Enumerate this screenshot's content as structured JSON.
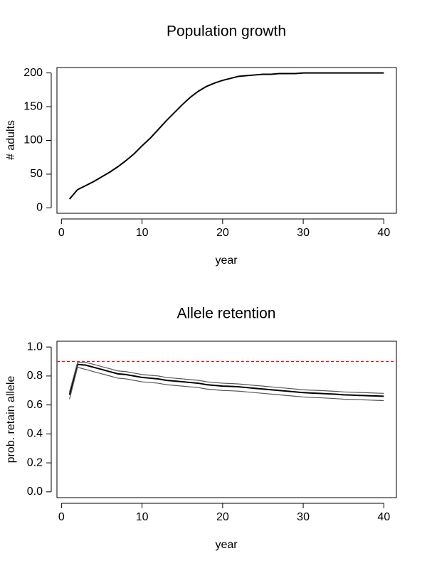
{
  "chart_data": [
    {
      "type": "line",
      "title": "Population growth",
      "xlabel": "year",
      "ylabel": "# adults",
      "x": [
        1,
        2,
        3,
        4,
        5,
        6,
        7,
        8,
        9,
        10,
        11,
        12,
        13,
        14,
        15,
        16,
        17,
        18,
        19,
        20,
        21,
        22,
        23,
        24,
        25,
        26,
        27,
        28,
        29,
        30,
        31,
        32,
        33,
        34,
        35,
        36,
        37,
        38,
        39,
        40
      ],
      "series": [
        {
          "color": "#000000",
          "values": [
            13,
            27,
            33,
            39,
            46,
            53,
            61,
            70,
            80,
            92,
            103,
            116,
            129,
            141,
            153,
            164,
            173,
            180,
            185,
            189,
            192,
            195,
            196,
            197,
            198,
            198,
            199,
            199,
            199,
            200,
            200,
            200,
            200,
            200,
            200,
            200,
            200,
            200,
            200,
            200
          ]
        }
      ],
      "xlim": [
        -0.56,
        41.56
      ],
      "xticks": [
        0,
        10,
        20,
        30,
        40
      ],
      "ylim": [
        -8,
        208
      ],
      "yticks": [
        0,
        50,
        100,
        150,
        200
      ]
    },
    {
      "type": "line",
      "title": "Allele retention",
      "xlabel": "year",
      "ylabel": "prob. retain allele",
      "x": [
        1,
        2,
        3,
        4,
        5,
        6,
        7,
        8,
        9,
        10,
        11,
        12,
        13,
        14,
        15,
        16,
        17,
        18,
        19,
        20,
        21,
        22,
        23,
        24,
        25,
        26,
        27,
        28,
        29,
        30,
        31,
        32,
        33,
        34,
        35,
        36,
        37,
        38,
        39,
        40
      ],
      "series": [
        {
          "color": "#000000",
          "values": [
            0.67,
            0.88,
            0.875,
            0.86,
            0.845,
            0.83,
            0.815,
            0.81,
            0.8,
            0.79,
            0.785,
            0.78,
            0.77,
            0.765,
            0.76,
            0.755,
            0.75,
            0.74,
            0.735,
            0.73,
            0.728,
            0.725,
            0.72,
            0.715,
            0.71,
            0.705,
            0.7,
            0.695,
            0.69,
            0.685,
            0.682,
            0.68,
            0.677,
            0.674,
            0.67,
            0.668,
            0.666,
            0.664,
            0.662,
            0.66
          ]
        },
        {
          "color": "#555555",
          "values": [
            0.69,
            0.895,
            0.895,
            0.88,
            0.865,
            0.85,
            0.835,
            0.83,
            0.82,
            0.81,
            0.805,
            0.8,
            0.79,
            0.785,
            0.78,
            0.775,
            0.77,
            0.76,
            0.755,
            0.75,
            0.748,
            0.745,
            0.74,
            0.735,
            0.73,
            0.725,
            0.72,
            0.715,
            0.71,
            0.705,
            0.702,
            0.7,
            0.697,
            0.694,
            0.69,
            0.688,
            0.686,
            0.684,
            0.682,
            0.68
          ]
        },
        {
          "color": "#555555",
          "values": [
            0.64,
            0.86,
            0.845,
            0.83,
            0.815,
            0.8,
            0.785,
            0.78,
            0.77,
            0.76,
            0.755,
            0.75,
            0.74,
            0.735,
            0.73,
            0.725,
            0.72,
            0.71,
            0.705,
            0.7,
            0.698,
            0.695,
            0.69,
            0.685,
            0.68,
            0.675,
            0.67,
            0.665,
            0.66,
            0.655,
            0.652,
            0.65,
            0.647,
            0.644,
            0.64,
            0.638,
            0.636,
            0.634,
            0.632,
            0.63
          ]
        }
      ],
      "hline": {
        "value": 0.9,
        "color": "#ff0000"
      },
      "xlim": [
        -0.56,
        41.56
      ],
      "xticks": [
        0,
        10,
        20,
        30,
        40
      ],
      "ylim": [
        -0.04,
        1.04
      ],
      "yticks": [
        {
          "value": 0,
          "label": "0.0"
        },
        0.2,
        0.4,
        0.6,
        0.8,
        {
          "value": 1,
          "label": "1.0"
        }
      ]
    }
  ]
}
